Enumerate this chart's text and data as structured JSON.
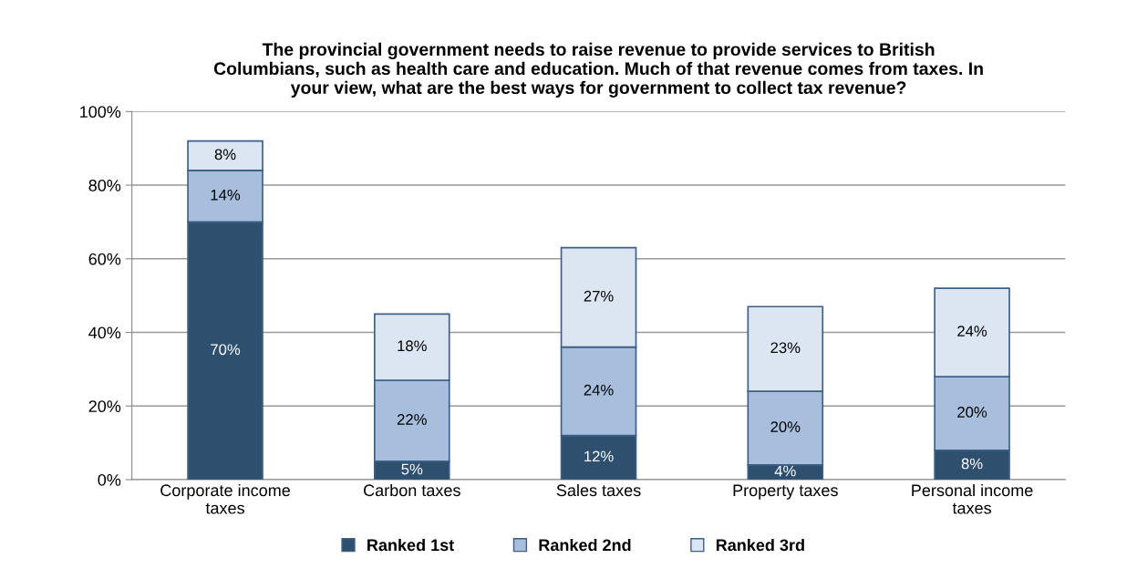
{
  "chart_data": {
    "type": "bar",
    "stacked": true,
    "title": "The provincial government needs to raise revenue to provide services to British\nColumbians, such as health care and education. Much of that revenue comes from taxes. In\nyour view, what are the best ways for government to collect tax revenue?",
    "categories": [
      "Corporate income taxes",
      "Carbon taxes",
      "Sales taxes",
      "Property taxes",
      "Personal income taxes"
    ],
    "series": [
      {
        "name": "Ranked 1st",
        "color": "#2f4f6f",
        "values": [
          70,
          5,
          12,
          4,
          8
        ],
        "value_labels": [
          "70%",
          "5%",
          "12%",
          "4%",
          "8%"
        ]
      },
      {
        "name": "Ranked 2nd",
        "color": "#a7bfdd",
        "values": [
          14,
          22,
          24,
          20,
          20
        ],
        "value_labels": [
          "14%",
          "22%",
          "24%",
          "20%",
          "20%"
        ]
      },
      {
        "name": "Ranked 3rd",
        "color": "#dce6f2",
        "values": [
          8,
          18,
          27,
          23,
          24
        ],
        "value_labels": [
          "8%",
          "18%",
          "27%",
          "23%",
          "24%"
        ]
      }
    ],
    "ylim": [
      0,
      100
    ],
    "yticks": [
      {
        "value": 0,
        "label": "0%"
      },
      {
        "value": 20,
        "label": "20%"
      },
      {
        "value": 40,
        "label": "40%"
      },
      {
        "value": 60,
        "label": "60%"
      },
      {
        "value": 80,
        "label": "80%"
      },
      {
        "value": 100,
        "label": "100%"
      }
    ],
    "grid": "y",
    "legend": "bottom"
  }
}
